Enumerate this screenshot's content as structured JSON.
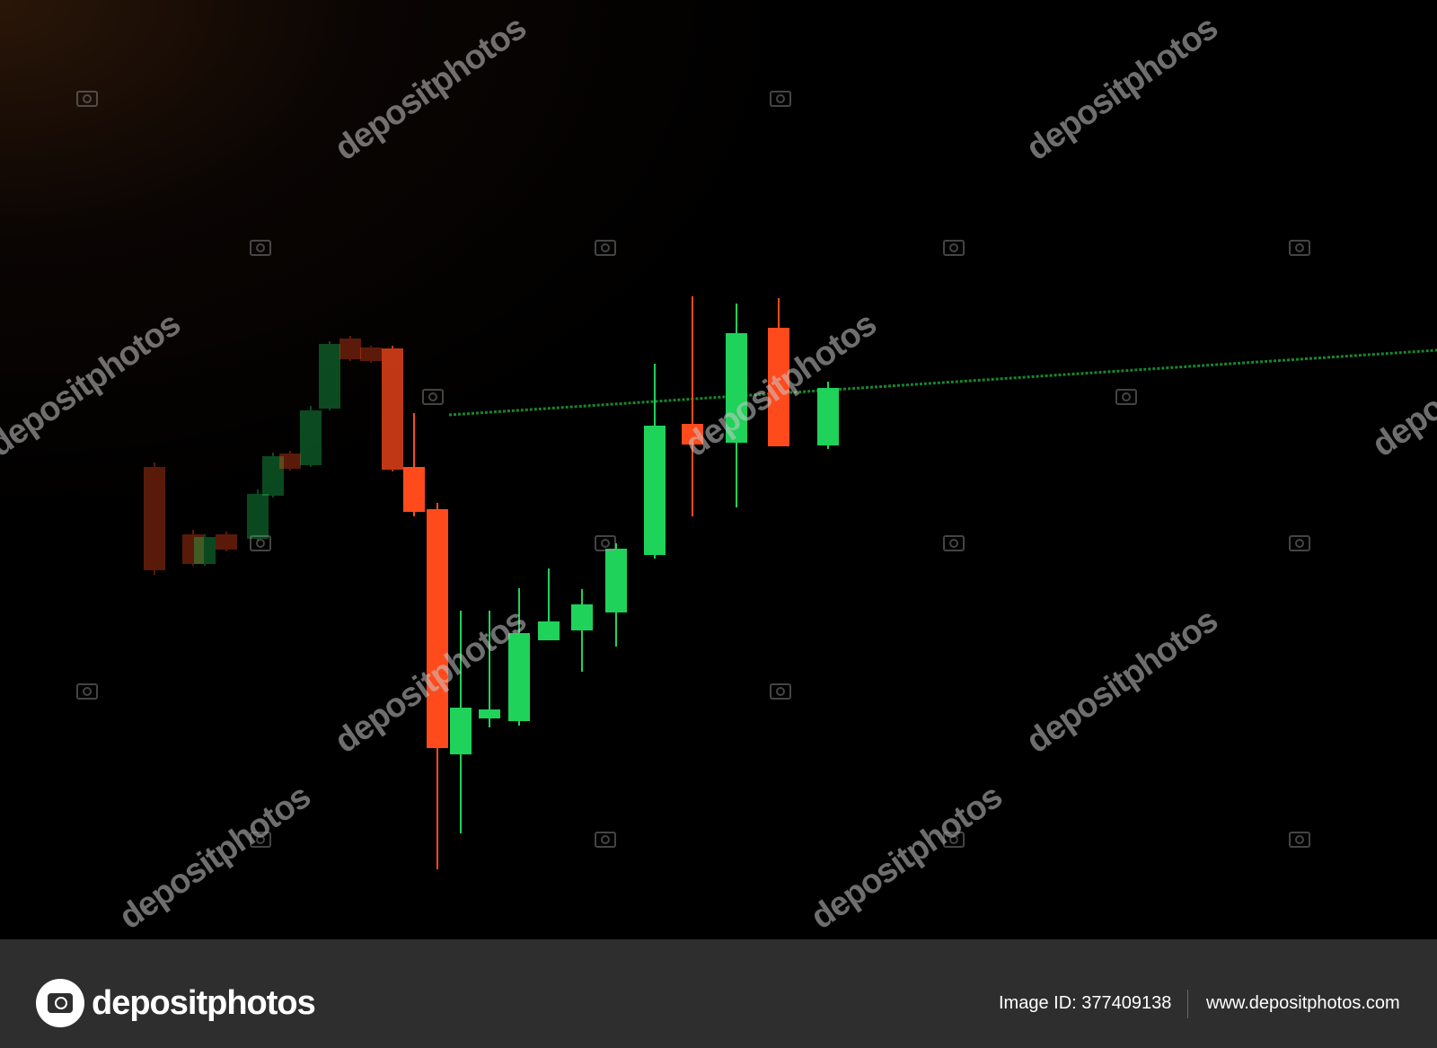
{
  "watermark": {
    "text": "depositphotos"
  },
  "colors": {
    "bullish": "#1fd25a",
    "bearish": "#ff4a1c",
    "trendline": "#22c040"
  },
  "footer": {
    "logo_text": "depositphotos",
    "image_id": "Image ID: 377409138",
    "website": "www.depositphotos.com"
  }
}
